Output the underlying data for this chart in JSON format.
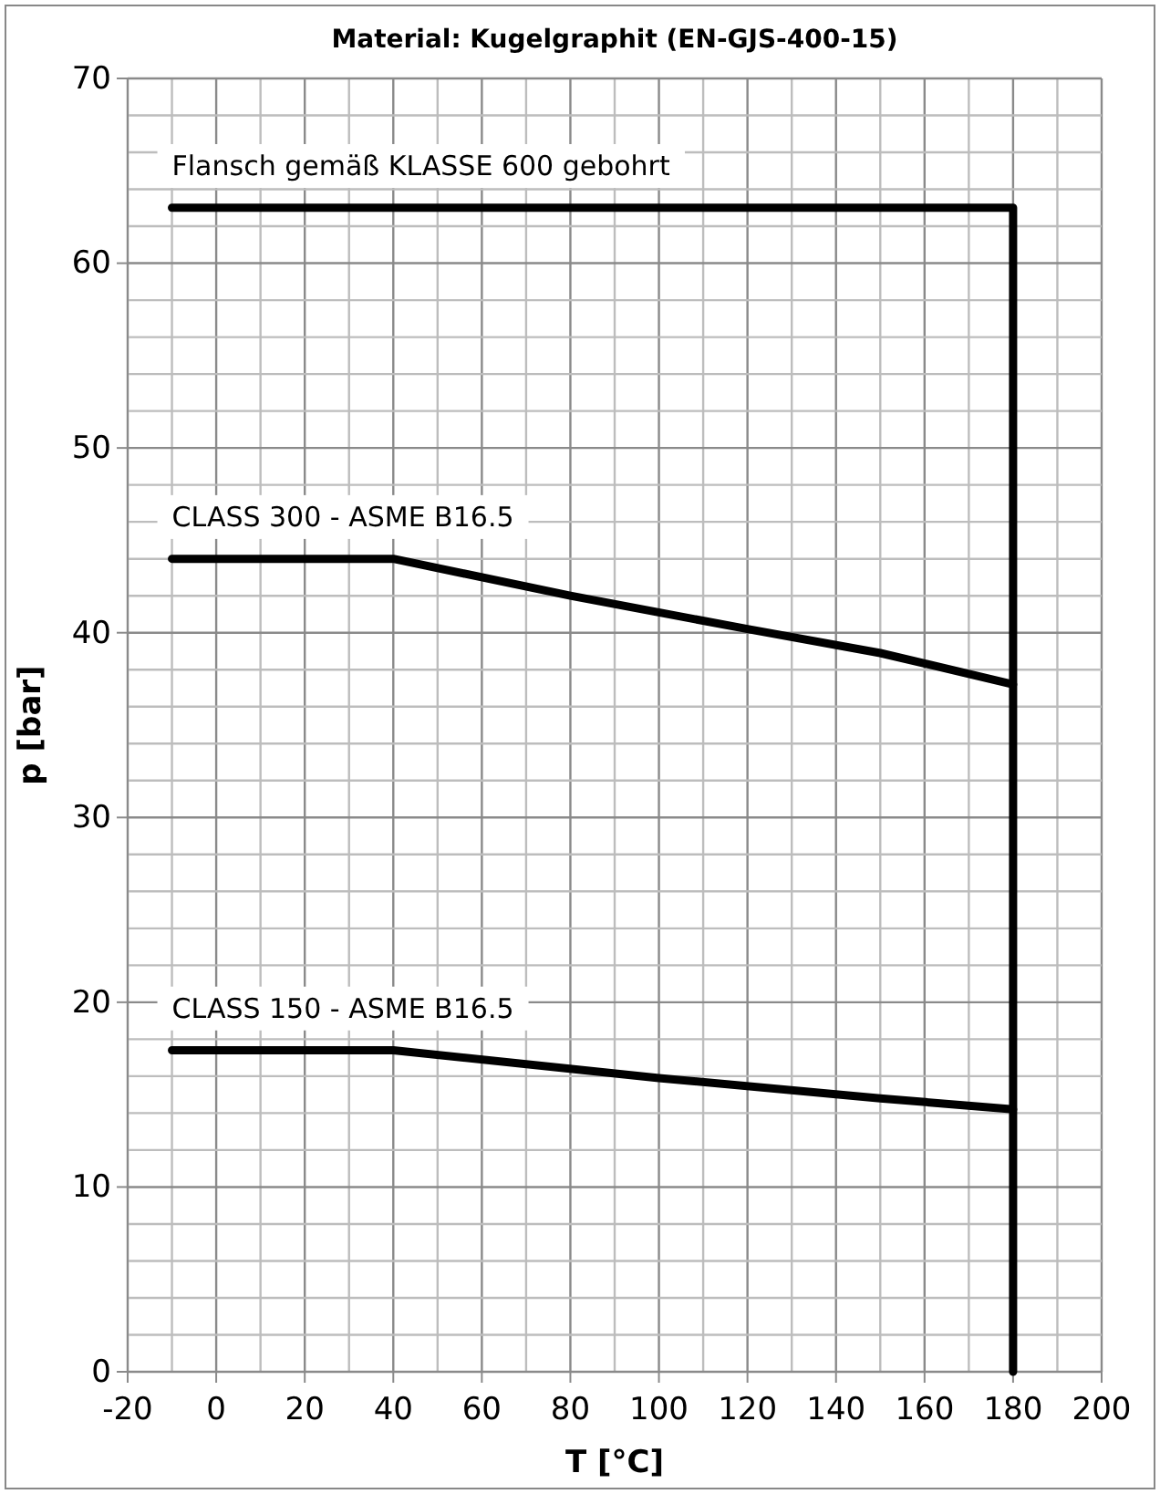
{
  "chart_data": {
    "type": "line",
    "title": "Material: Kugelgraphit (EN-GJS-400-15)",
    "xlabel": "T [°C]",
    "ylabel": "p [bar]",
    "xlim": [
      -20,
      200
    ],
    "ylim": [
      0,
      70
    ],
    "xticks": [
      -20,
      {
        "value": -10,
        "label": null
      },
      0,
      {
        "value": 10,
        "label": null
      },
      20,
      {
        "value": 30,
        "label": null
      },
      40,
      {
        "value": 50,
        "label": null
      },
      60,
      {
        "value": 70,
        "label": null
      },
      80,
      {
        "value": 90,
        "label": null
      },
      100,
      {
        "value": 110,
        "label": null
      },
      120,
      {
        "value": 130,
        "label": null
      },
      140,
      {
        "value": 150,
        "label": null
      },
      160,
      {
        "value": 170,
        "label": null
      },
      180,
      {
        "value": 190,
        "label": null
      },
      200
    ],
    "yticks": [
      0,
      {
        "value": 2,
        "label": null
      },
      {
        "value": 4,
        "label": null
      },
      {
        "value": 6,
        "label": null
      },
      {
        "value": 8,
        "label": null
      },
      10,
      {
        "value": 12,
        "label": null
      },
      {
        "value": 14,
        "label": null
      },
      {
        "value": 16,
        "label": null
      },
      {
        "value": 18,
        "label": null
      },
      20,
      {
        "value": 22,
        "label": null
      },
      {
        "value": 24,
        "label": null
      },
      {
        "value": 26,
        "label": null
      },
      {
        "value": 28,
        "label": null
      },
      30,
      {
        "value": 32,
        "label": null
      },
      {
        "value": 34,
        "label": null
      },
      {
        "value": 36,
        "label": null
      },
      {
        "value": 38,
        "label": null
      },
      40,
      {
        "value": 42,
        "label": null
      },
      {
        "value": 44,
        "label": null
      },
      {
        "value": 46,
        "label": null
      },
      {
        "value": 48,
        "label": null
      },
      50,
      {
        "value": 52,
        "label": null
      },
      {
        "value": 54,
        "label": null
      },
      {
        "value": 56,
        "label": null
      },
      {
        "value": 58,
        "label": null
      },
      60,
      {
        "value": 62,
        "label": null
      },
      {
        "value": 64,
        "label": null
      },
      {
        "value": 66,
        "label": null
      },
      {
        "value": 68,
        "label": null
      },
      70
    ],
    "grid": true,
    "marker": "none",
    "line_style": "solid",
    "series": [
      {
        "name": "Flansch gemäß KLASSE 600 gebohrt",
        "color": "#000000",
        "x": [
          -10,
          180,
          180
        ],
        "values": [
          63,
          63,
          0
        ]
      },
      {
        "name": "CLASS 300 - ASME B16.5",
        "color": "#000000",
        "x": [
          -10,
          40,
          80,
          120,
          150,
          180
        ],
        "values": [
          44,
          44,
          42,
          40.2,
          38.9,
          37.2
        ]
      },
      {
        "name": "CLASS 150 - ASME B16.5",
        "color": "#000000",
        "x": [
          -10,
          40,
          100,
          150,
          180
        ],
        "values": [
          17.4,
          17.4,
          15.9,
          14.8,
          14.2
        ]
      }
    ]
  }
}
